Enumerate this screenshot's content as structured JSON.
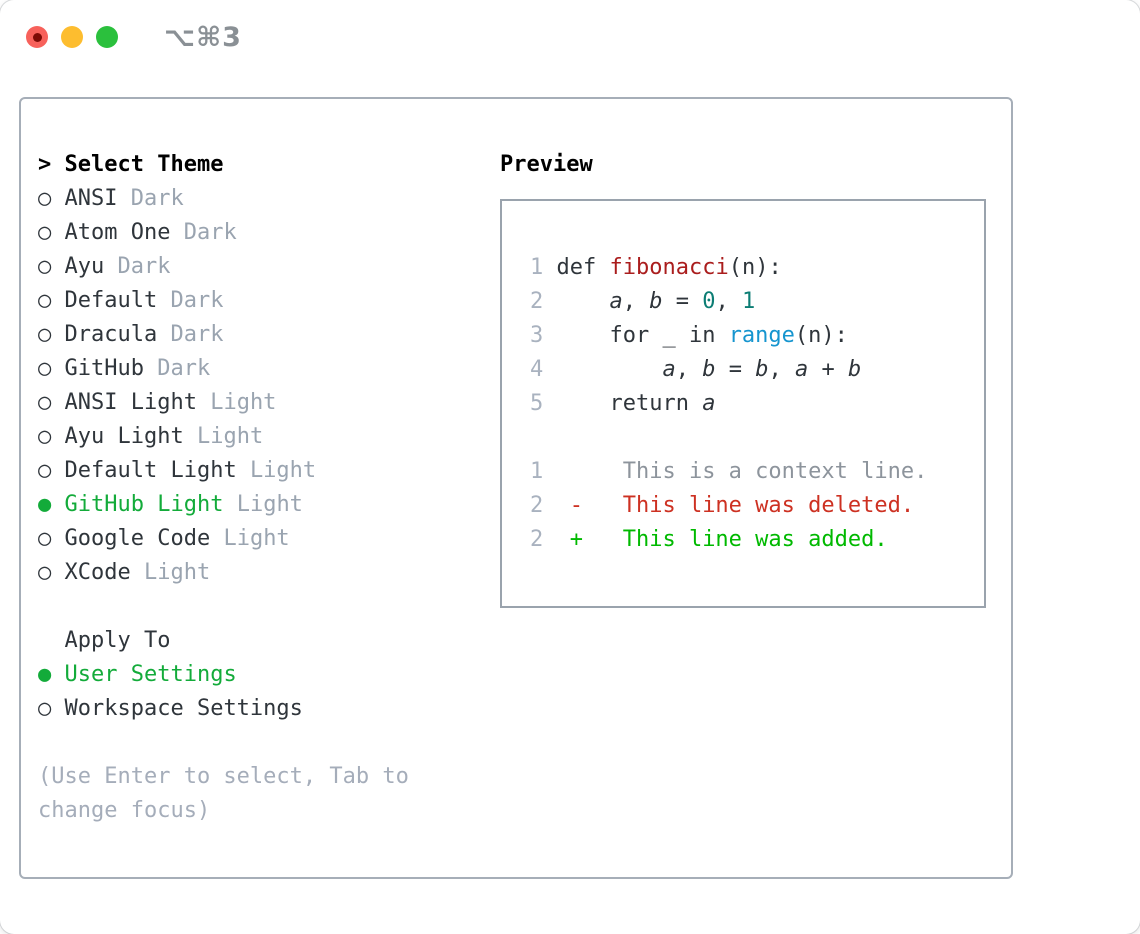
{
  "window": {
    "title": "⌥⌘3",
    "traffic_lights": {
      "close": "close",
      "minimize": "minimize",
      "zoom": "zoom"
    }
  },
  "picker": {
    "cursor": ">",
    "header": "Select Theme",
    "items": [
      {
        "name": "ANSI",
        "badge": "Dark",
        "selected": false
      },
      {
        "name": "Atom One",
        "badge": "Dark",
        "selected": false
      },
      {
        "name": "Ayu",
        "badge": "Dark",
        "selected": false
      },
      {
        "name": "Default",
        "badge": "Dark",
        "selected": false
      },
      {
        "name": "Dracula",
        "badge": "Dark",
        "selected": false
      },
      {
        "name": "GitHub",
        "badge": "Dark",
        "selected": false
      },
      {
        "name": "ANSI Light",
        "badge": "Light",
        "selected": false
      },
      {
        "name": "Ayu Light",
        "badge": "Light",
        "selected": false
      },
      {
        "name": "Default Light",
        "badge": "Light",
        "selected": false
      },
      {
        "name": "GitHub Light",
        "badge": "Light",
        "selected": true
      },
      {
        "name": "Google Code",
        "badge": "Light",
        "selected": false
      },
      {
        "name": "XCode",
        "badge": "Light",
        "selected": false
      }
    ],
    "apply_to": {
      "label": "  Apply To",
      "options": [
        {
          "name": "User Settings",
          "selected": true
        },
        {
          "name": "Workspace Settings",
          "selected": false
        }
      ]
    },
    "hint_lines": [
      "(Use Enter to select, Tab to",
      "change focus)"
    ]
  },
  "preview": {
    "title": "Preview",
    "code_lines": [
      {
        "num": "1",
        "segments": [
          [
            "plain",
            " def "
          ],
          [
            "func",
            "fibonacci"
          ],
          [
            "plain",
            "(n):"
          ]
        ]
      },
      {
        "num": "2",
        "segments": [
          [
            "plain",
            "     "
          ],
          [
            "var",
            "a"
          ],
          [
            "plain",
            ", "
          ],
          [
            "var",
            "b"
          ],
          [
            "plain",
            " = "
          ],
          [
            "number",
            "0"
          ],
          [
            "plain",
            ", "
          ],
          [
            "number",
            "1"
          ]
        ]
      },
      {
        "num": "3",
        "segments": [
          [
            "plain",
            "     for _ in "
          ],
          [
            "builtin",
            "range"
          ],
          [
            "plain",
            "(n):"
          ]
        ]
      },
      {
        "num": "4",
        "segments": [
          [
            "plain",
            "         "
          ],
          [
            "var",
            "a"
          ],
          [
            "plain",
            ", "
          ],
          [
            "var",
            "b"
          ],
          [
            "plain",
            " = "
          ],
          [
            "var",
            "b"
          ],
          [
            "plain",
            ", "
          ],
          [
            "var",
            "a"
          ],
          [
            "plain",
            " + "
          ],
          [
            "var",
            "b"
          ]
        ]
      },
      {
        "num": "5",
        "segments": [
          [
            "plain",
            "     return "
          ],
          [
            "var",
            "a"
          ]
        ]
      }
    ],
    "diff_lines": [
      {
        "num": "1",
        "type": "context",
        "body": "      This is a context line."
      },
      {
        "num": "2",
        "type": "deleted",
        "body": "  -   This line was deleted."
      },
      {
        "num": "2",
        "type": "added",
        "body": "  +   This line was added."
      }
    ]
  },
  "colors": {
    "text-dark": "#2f353b",
    "line-number": "#a9b2bf",
    "gray-badge": "#9aa4b0",
    "gray-help": "#a5adba",
    "gray-context": "#8d949c",
    "green-select": "#13ab3a",
    "green-added": "#00b900",
    "red-func": "#aa1d1d",
    "red-deleted": "#cd3122",
    "teal-num": "#0c7d74",
    "blue-builtin": "#1695cf",
    "border-panel": "#a6aeb8",
    "border-box": "#9aa3ad",
    "title-gray": "#8a9095",
    "tl-red": "#f7615b",
    "tl-red-dot": "#7d0b06",
    "tl-yellow": "#fdbd2f",
    "tl-green": "#2bc03d"
  }
}
